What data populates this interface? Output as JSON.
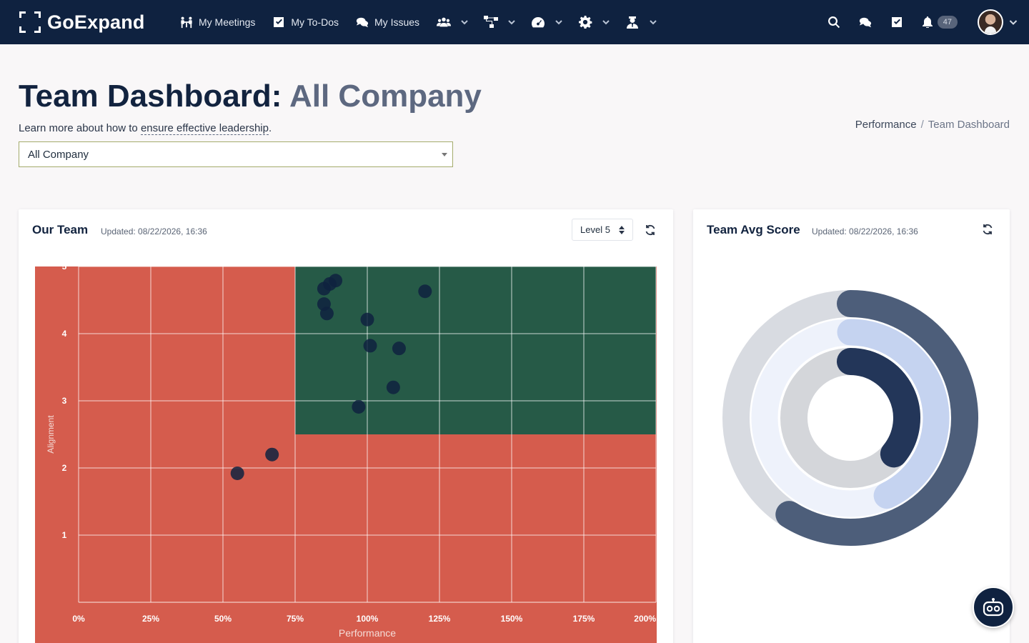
{
  "navbar": {
    "logo_text": "GoExpand",
    "links": [
      {
        "label": "My Meetings",
        "icon": "meeting-icon"
      },
      {
        "label": "My To-Dos",
        "icon": "checkbox-icon"
      },
      {
        "label": "My Issues",
        "icon": "chat-icon"
      }
    ],
    "dropdowns": [
      "team-icon",
      "org-chart-icon",
      "dashboard-gauge-icon",
      "gear-icon",
      "user-tie-icon"
    ],
    "notification_count": "47"
  },
  "header": {
    "title": "Team Dashboard:",
    "title_sub": "All Company",
    "learn_prefix": "Learn more about how to ",
    "learn_link": "ensure effective leadership",
    "learn_suffix": ".",
    "select_value": "All Company",
    "breadcrumb": {
      "parent": "Performance",
      "current": "Team Dashboard"
    }
  },
  "our_team": {
    "title": "Our Team",
    "updated": "Updated: 08/22/2026, 16:36",
    "level": "Level 5"
  },
  "team_avg": {
    "title": "Team Avg Score",
    "updated": "Updated: 08/22/2026, 16:36"
  },
  "chart_data": [
    {
      "type": "scatter",
      "xlabel": "Performance",
      "ylabel": "Alignment",
      "xlim": [
        0,
        200
      ],
      "ylim": [
        0,
        5
      ],
      "xticks": [
        "0%",
        "25%",
        "50%",
        "75%",
        "100%",
        "125%",
        "150%",
        "175%",
        "200%"
      ],
      "xtick_values": [
        0,
        25,
        50,
        75,
        100,
        125,
        150,
        175,
        200
      ],
      "yticks": [
        "1",
        "2",
        "3",
        "4",
        "5"
      ],
      "ytick_values": [
        1,
        2,
        3,
        4,
        5
      ],
      "grid": true,
      "regions": [
        {
          "quadrant": "good",
          "x_min": 75,
          "x_max": 200,
          "y_min": 2.5,
          "y_max": 5,
          "color": "#265a47"
        },
        {
          "quadrant": "default",
          "color": "#d55c4d"
        }
      ],
      "point_color": "#0f2240",
      "points": [
        {
          "x": 89,
          "y": 4.79
        },
        {
          "x": 87,
          "y": 4.74
        },
        {
          "x": 85,
          "y": 4.67
        },
        {
          "x": 85,
          "y": 4.44
        },
        {
          "x": 86,
          "y": 4.3
        },
        {
          "x": 120,
          "y": 4.63
        },
        {
          "x": 100,
          "y": 4.21
        },
        {
          "x": 101,
          "y": 3.82
        },
        {
          "x": 111,
          "y": 3.78
        },
        {
          "x": 109,
          "y": 3.2
        },
        {
          "x": 97,
          "y": 2.91
        },
        {
          "x": 67,
          "y": 2.2
        },
        {
          "x": 55,
          "y": 1.92
        }
      ]
    },
    {
      "type": "pie",
      "variant": "concentric-rings",
      "rings": [
        {
          "ring": "outer",
          "value": 0.59,
          "fill_color": "#4d5e7a",
          "track_color": "#d8dbe1"
        },
        {
          "ring": "middle",
          "value": 0.43,
          "fill_color": "#c5d3f0",
          "track_color": "#eef2fb"
        },
        {
          "ring": "inner",
          "value": 0.36,
          "fill_color": "#233659",
          "track_color": "#d4d6da"
        }
      ]
    }
  ]
}
